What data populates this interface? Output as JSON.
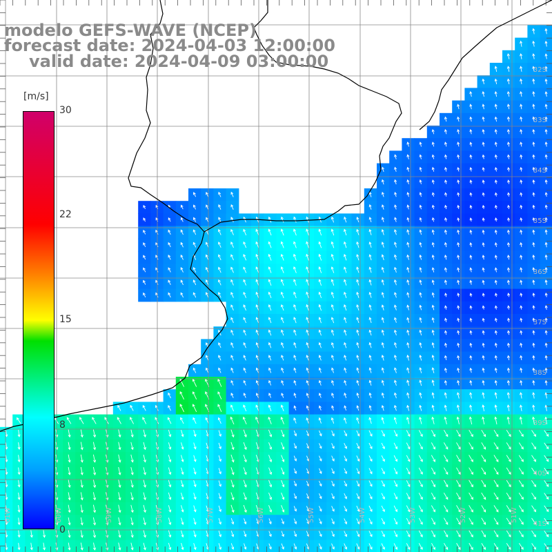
{
  "title": {
    "line1": "modelo GEFS-WAVE (NCEP)",
    "line2": "forecast date: 2024-04-03 12:00:00",
    "line3": "valid date: 2024-04-09 03:00:00"
  },
  "colorbar": {
    "unit": "[m/s]",
    "min": 0,
    "max": 30,
    "ticks": [
      {
        "label": "30",
        "value": 30
      },
      {
        "label": "22",
        "value": 22
      },
      {
        "label": "15",
        "value": 15
      },
      {
        "label": "8",
        "value": 8
      },
      {
        "label": "0",
        "value": 0
      }
    ]
  },
  "lat_labels": [
    "32S",
    "33S",
    "34S",
    "35S",
    "36S",
    "37S",
    "38S",
    "39S",
    "40S",
    "41S"
  ],
  "lon_labels": [
    "61W",
    "60W",
    "59W",
    "58W",
    "57W",
    "56W",
    "55W",
    "54W",
    "53W",
    "52W",
    "51W"
  ],
  "colors": {
    "land": "#ffffff",
    "grid": "#888888",
    "coast": "#000000",
    "arrows": "#ffffff"
  }
}
